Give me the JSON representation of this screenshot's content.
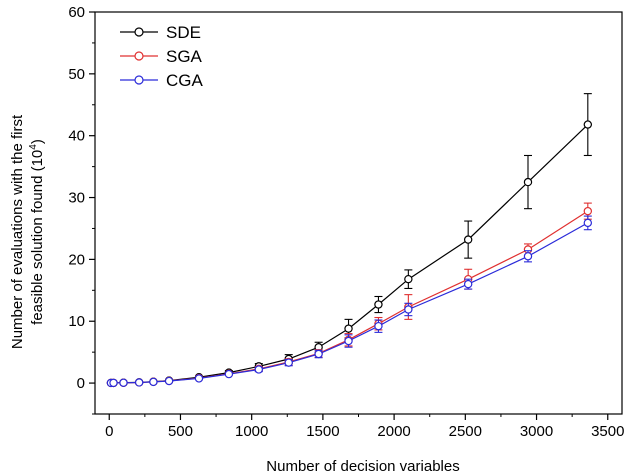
{
  "chart_data": {
    "type": "line",
    "xlabel": "Number of decision variables",
    "ylabel_lines": [
      "Number of evaluations with the first",
      "feasible solution found (10",
      ")"
    ],
    "ylabel_exponent": "4",
    "xlim": [
      -100,
      3600
    ],
    "ylim": [
      -5,
      60
    ],
    "xticks": [
      0,
      500,
      1000,
      1500,
      2000,
      2500,
      3000,
      3500
    ],
    "yticks": [
      0,
      10,
      20,
      30,
      40,
      50,
      60
    ],
    "x": [
      12,
      30,
      100,
      210,
      310,
      420,
      630,
      840,
      1050,
      1260,
      1470,
      1680,
      1890,
      2100,
      2520,
      2940,
      3360
    ],
    "legend_position": "top-left",
    "series": [
      {
        "name": "SDE",
        "color": "#000000",
        "values": [
          0.02,
          0.03,
          0.06,
          0.12,
          0.22,
          0.4,
          0.95,
          1.7,
          2.7,
          3.9,
          5.8,
          8.8,
          12.7,
          16.8,
          23.2,
          32.5,
          41.8
        ],
        "errors": [
          0.02,
          0.02,
          0.03,
          0.05,
          0.08,
          0.12,
          0.2,
          0.3,
          0.45,
          0.7,
          0.8,
          1.5,
          1.3,
          1.5,
          3.0,
          4.3,
          5.0
        ]
      },
      {
        "name": "SGA",
        "color": "#e03030",
        "values": [
          0.02,
          0.03,
          0.05,
          0.1,
          0.2,
          0.35,
          0.8,
          1.5,
          2.3,
          3.4,
          4.8,
          7.0,
          9.6,
          12.3,
          16.8,
          21.6,
          27.8
        ],
        "errors": [
          0.02,
          0.02,
          0.03,
          0.04,
          0.06,
          0.1,
          0.15,
          0.25,
          0.35,
          0.5,
          0.6,
          1.0,
          1.0,
          2.0,
          1.6,
          0.9,
          1.3
        ]
      },
      {
        "name": "CGA",
        "color": "#2b2bd9",
        "values": [
          0.02,
          0.03,
          0.05,
          0.1,
          0.19,
          0.33,
          0.75,
          1.45,
          2.2,
          3.3,
          4.7,
          6.8,
          9.2,
          11.9,
          16.0,
          20.5,
          25.9
        ],
        "errors": [
          0.02,
          0.02,
          0.03,
          0.04,
          0.06,
          0.1,
          0.15,
          0.25,
          0.35,
          0.5,
          0.6,
          1.0,
          1.0,
          1.0,
          0.8,
          0.9,
          1.1
        ]
      }
    ]
  }
}
